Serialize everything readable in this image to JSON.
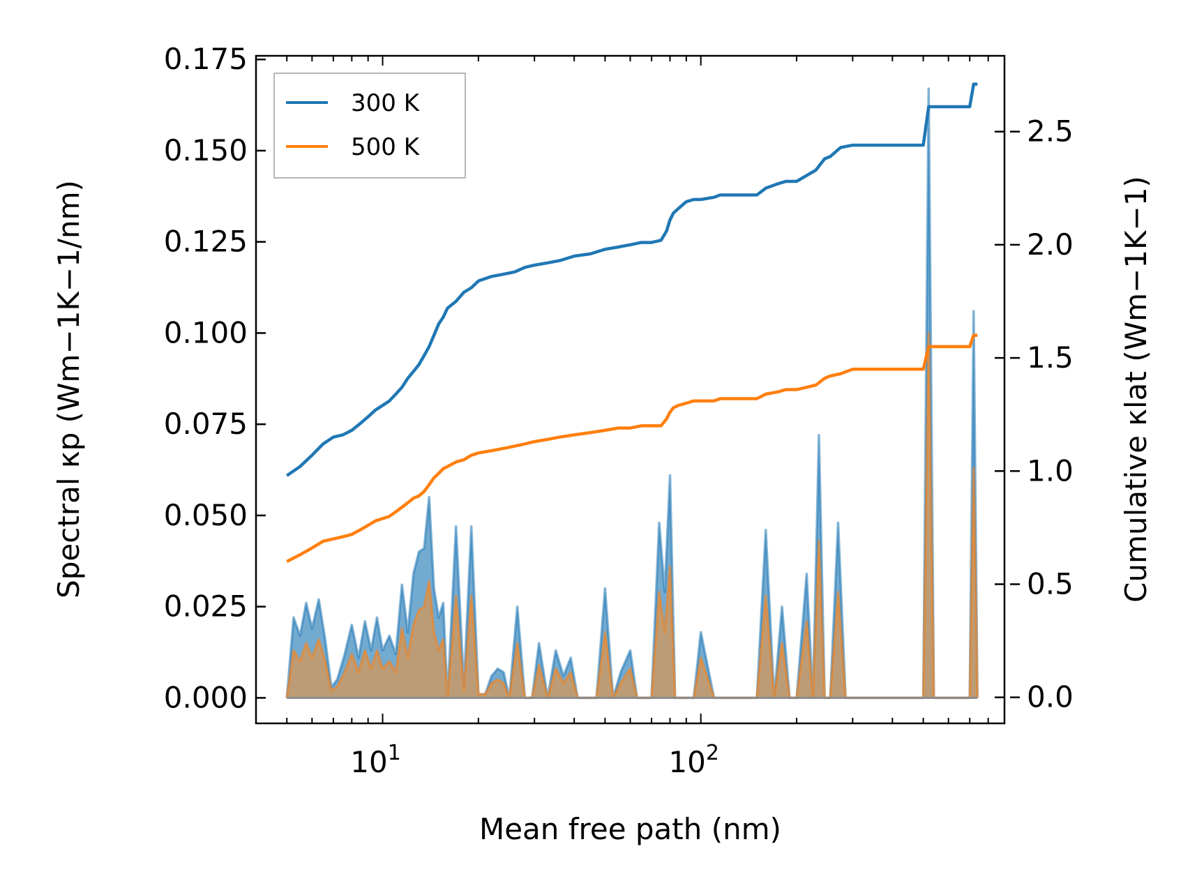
{
  "chart_data": {
    "type": "line",
    "xlabel": "Mean free path (nm)",
    "ylabel_left": "Spectral κp (Wm−1K−1/nm)",
    "ylabel_right": "Cumulative κlat (Wm−1K−1)",
    "xscale": "log",
    "xlim": [
      4.0,
      900
    ],
    "ylim_left": [
      -0.007,
      0.176
    ],
    "ylim_right": [
      -0.115,
      2.835
    ],
    "yticks_left": [
      "0.000",
      "0.025",
      "0.050",
      "0.075",
      "0.100",
      "0.125",
      "0.150",
      "0.175"
    ],
    "yticks_right": [
      "0.0",
      "0.5",
      "1.0",
      "1.5",
      "2.0",
      "2.5"
    ],
    "xticks": [
      {
        "base": "10",
        "exp": "1",
        "value": 10
      },
      {
        "base": "10",
        "exp": "2",
        "value": 100
      }
    ],
    "legend": {
      "position": "upper-left",
      "entries": [
        "300 K",
        "500 K"
      ]
    },
    "colors": {
      "300K": "#1f77b4",
      "500K": "#ff7f0e",
      "spectral_fill_300K": "#5a9bc8",
      "spectral_fill_500K": "#c49a6c"
    },
    "series": [
      {
        "name": "300 K",
        "kind": "spectral",
        "axis": "left",
        "x": [
          5.0,
          5.25,
          5.5,
          5.75,
          6.0,
          6.3,
          6.6,
          6.9,
          7.2,
          7.6,
          8.0,
          8.4,
          8.8,
          9.2,
          9.6,
          10.0,
          10.5,
          11.0,
          11.5,
          12.0,
          12.5,
          13.0,
          13.5,
          14.0,
          14.5,
          15.0,
          15.5,
          16.0,
          17.0,
          18.0,
          19.0,
          20.0,
          21.0,
          22.0,
          23.0,
          24.0,
          25.0,
          26.5,
          28.0,
          29.5,
          31.0,
          33.0,
          35.0,
          37.0,
          39.0,
          41.0,
          43.0,
          45.0,
          47.0,
          50.0,
          53.0,
          56.0,
          60.0,
          63.0,
          66.0,
          70.0,
          74.0,
          77.0,
          80.0,
          83.0,
          86.0,
          90.0,
          95.0,
          100.0,
          110.0,
          115.0,
          120.0,
          130.0,
          140.0,
          150.0,
          160.0,
          170.0,
          180.0,
          190.0,
          200.0,
          215.0,
          225.0,
          235.0,
          245.0,
          255.0,
          270.0,
          285.0,
          300.0,
          315.0,
          330.0,
          400.0,
          500.0,
          520.0,
          540.0,
          560.0,
          600.0,
          650.0,
          700.0,
          720.0,
          740.0
        ],
        "y": [
          0,
          0.022,
          0.017,
          0.026,
          0.019,
          0.027,
          0.016,
          0.003,
          0.005,
          0.012,
          0.02,
          0.011,
          0.021,
          0.013,
          0.022,
          0.013,
          0.017,
          0.012,
          0.031,
          0.018,
          0.034,
          0.04,
          0.041,
          0.055,
          0.03,
          0.022,
          0.026,
          0.0,
          0.047,
          0.003,
          0.047,
          0.001,
          0.001,
          0.006,
          0.008,
          0.007,
          0.0,
          0.025,
          0.0,
          0.0,
          0.015,
          0.0,
          0.013,
          0.006,
          0.011,
          0.0,
          0.0,
          0.0,
          0.0,
          0.03,
          0.0,
          0.007,
          0.013,
          0.0,
          0.0,
          0.0,
          0.048,
          0.029,
          0.061,
          0.0,
          0.0,
          0.0,
          0.0,
          0.018,
          0.0,
          0.0,
          0.0,
          0.0,
          0.0,
          0.0,
          0.046,
          0.0,
          0.025,
          0.0,
          0.0,
          0.034,
          0.0,
          0.072,
          0.0,
          0.0,
          0.048,
          0.0,
          0.0,
          0.0,
          0.0,
          0.0,
          0.0,
          0.167,
          0.0,
          0.0,
          0.0,
          0.0,
          0.0,
          0.106,
          0.0
        ]
      },
      {
        "name": "500 K",
        "kind": "spectral",
        "axis": "left",
        "x": [
          5.0,
          5.25,
          5.5,
          5.75,
          6.0,
          6.3,
          6.6,
          6.9,
          7.2,
          7.6,
          8.0,
          8.4,
          8.8,
          9.2,
          9.6,
          10.0,
          10.5,
          11.0,
          11.5,
          12.0,
          12.5,
          13.0,
          13.5,
          14.0,
          14.5,
          15.0,
          15.5,
          16.0,
          17.0,
          18.0,
          19.0,
          20.0,
          21.0,
          22.0,
          23.0,
          24.0,
          25.0,
          26.5,
          28.0,
          29.5,
          31.0,
          33.0,
          35.0,
          37.0,
          39.0,
          41.0,
          43.0,
          45.0,
          47.0,
          50.0,
          53.0,
          56.0,
          60.0,
          63.0,
          66.0,
          70.0,
          74.0,
          77.0,
          80.0,
          83.0,
          86.0,
          90.0,
          95.0,
          100.0,
          110.0,
          115.0,
          120.0,
          130.0,
          140.0,
          150.0,
          160.0,
          170.0,
          180.0,
          190.0,
          200.0,
          215.0,
          225.0,
          235.0,
          245.0,
          255.0,
          270.0,
          285.0,
          300.0,
          315.0,
          330.0,
          400.0,
          500.0,
          520.0,
          540.0,
          560.0,
          600.0,
          650.0,
          700.0,
          720.0,
          740.0
        ],
        "y": [
          0,
          0.013,
          0.01,
          0.015,
          0.011,
          0.016,
          0.01,
          0.002,
          0.003,
          0.007,
          0.012,
          0.007,
          0.013,
          0.008,
          0.013,
          0.008,
          0.01,
          0.007,
          0.019,
          0.011,
          0.02,
          0.024,
          0.025,
          0.032,
          0.018,
          0.013,
          0.016,
          0.0,
          0.028,
          0.002,
          0.028,
          0.001,
          0.001,
          0.004,
          0.005,
          0.004,
          0.0,
          0.015,
          0.0,
          0.0,
          0.009,
          0.0,
          0.008,
          0.004,
          0.007,
          0.0,
          0.0,
          0.0,
          0.0,
          0.018,
          0.0,
          0.004,
          0.008,
          0.0,
          0.0,
          0.0,
          0.029,
          0.018,
          0.036,
          0.0,
          0.0,
          0.0,
          0.0,
          0.011,
          0.0,
          0.0,
          0.0,
          0.0,
          0.0,
          0.0,
          0.028,
          0.0,
          0.015,
          0.0,
          0.0,
          0.021,
          0.0,
          0.043,
          0.0,
          0.0,
          0.029,
          0.0,
          0.0,
          0.0,
          0.0,
          0.0,
          0.0,
          0.1,
          0.0,
          0.0,
          0.0,
          0.0,
          0.0,
          0.063,
          0.0
        ]
      },
      {
        "name": "300 K",
        "kind": "cumulative",
        "axis": "right",
        "x": [
          5.0,
          5.5,
          6.0,
          6.5,
          7.0,
          7.5,
          8.0,
          8.5,
          9.0,
          9.5,
          10.0,
          10.5,
          11.0,
          11.5,
          12.0,
          12.5,
          13.0,
          13.5,
          14.0,
          14.5,
          15.0,
          15.5,
          16.0,
          17.0,
          18.0,
          19.0,
          20.0,
          22.0,
          24.0,
          26.0,
          28.0,
          30.0,
          33.0,
          36.0,
          40.0,
          45.0,
          50.0,
          55.0,
          60.0,
          65.0,
          70.0,
          75.0,
          78.0,
          80.0,
          82.0,
          85.0,
          90.0,
          95.0,
          100.0,
          110.0,
          115.0,
          130.0,
          150.0,
          160.0,
          175.0,
          185.0,
          200.0,
          230.0,
          245.0,
          255.0,
          275.0,
          300.0,
          350.0,
          400.0,
          500.0,
          520.0,
          540.0,
          560.0,
          600.0,
          650.0,
          700.0,
          720.0,
          740.0
        ],
        "y": [
          0.98,
          1.02,
          1.07,
          1.12,
          1.15,
          1.16,
          1.18,
          1.21,
          1.24,
          1.27,
          1.29,
          1.31,
          1.34,
          1.37,
          1.41,
          1.44,
          1.47,
          1.51,
          1.55,
          1.6,
          1.65,
          1.68,
          1.72,
          1.75,
          1.79,
          1.81,
          1.84,
          1.86,
          1.87,
          1.88,
          1.9,
          1.91,
          1.92,
          1.93,
          1.95,
          1.96,
          1.98,
          1.99,
          2.0,
          2.01,
          2.01,
          2.02,
          2.06,
          2.11,
          2.14,
          2.16,
          2.19,
          2.2,
          2.2,
          2.21,
          2.22,
          2.22,
          2.22,
          2.25,
          2.27,
          2.28,
          2.28,
          2.33,
          2.38,
          2.39,
          2.43,
          2.44,
          2.44,
          2.44,
          2.44,
          2.61,
          2.61,
          2.61,
          2.61,
          2.61,
          2.61,
          2.71,
          2.71
        ]
      },
      {
        "name": "500 K",
        "kind": "cumulative",
        "axis": "right",
        "x": [
          5.0,
          5.5,
          6.0,
          6.5,
          7.0,
          7.5,
          8.0,
          8.5,
          9.0,
          9.5,
          10.0,
          10.5,
          11.0,
          11.5,
          12.0,
          12.5,
          13.0,
          13.5,
          14.0,
          14.5,
          15.0,
          15.5,
          16.0,
          17.0,
          18.0,
          19.0,
          20.0,
          22.0,
          24.0,
          26.0,
          28.0,
          30.0,
          33.0,
          36.0,
          40.0,
          45.0,
          50.0,
          55.0,
          60.0,
          65.0,
          70.0,
          75.0,
          78.0,
          80.0,
          82.0,
          85.0,
          90.0,
          95.0,
          100.0,
          110.0,
          115.0,
          130.0,
          150.0,
          160.0,
          175.0,
          185.0,
          200.0,
          230.0,
          245.0,
          255.0,
          275.0,
          300.0,
          350.0,
          400.0,
          500.0,
          520.0,
          540.0,
          560.0,
          600.0,
          650.0,
          700.0,
          720.0,
          740.0
        ],
        "y": [
          0.6,
          0.63,
          0.66,
          0.69,
          0.7,
          0.71,
          0.72,
          0.74,
          0.76,
          0.78,
          0.79,
          0.8,
          0.82,
          0.84,
          0.86,
          0.88,
          0.89,
          0.91,
          0.94,
          0.97,
          0.99,
          1.01,
          1.02,
          1.04,
          1.05,
          1.07,
          1.08,
          1.09,
          1.1,
          1.11,
          1.12,
          1.13,
          1.14,
          1.15,
          1.16,
          1.17,
          1.18,
          1.19,
          1.19,
          1.2,
          1.2,
          1.2,
          1.23,
          1.26,
          1.28,
          1.29,
          1.3,
          1.31,
          1.31,
          1.31,
          1.32,
          1.32,
          1.32,
          1.34,
          1.35,
          1.36,
          1.36,
          1.38,
          1.41,
          1.42,
          1.43,
          1.45,
          1.45,
          1.45,
          1.45,
          1.55,
          1.55,
          1.55,
          1.55,
          1.55,
          1.55,
          1.6,
          1.6
        ]
      }
    ]
  }
}
